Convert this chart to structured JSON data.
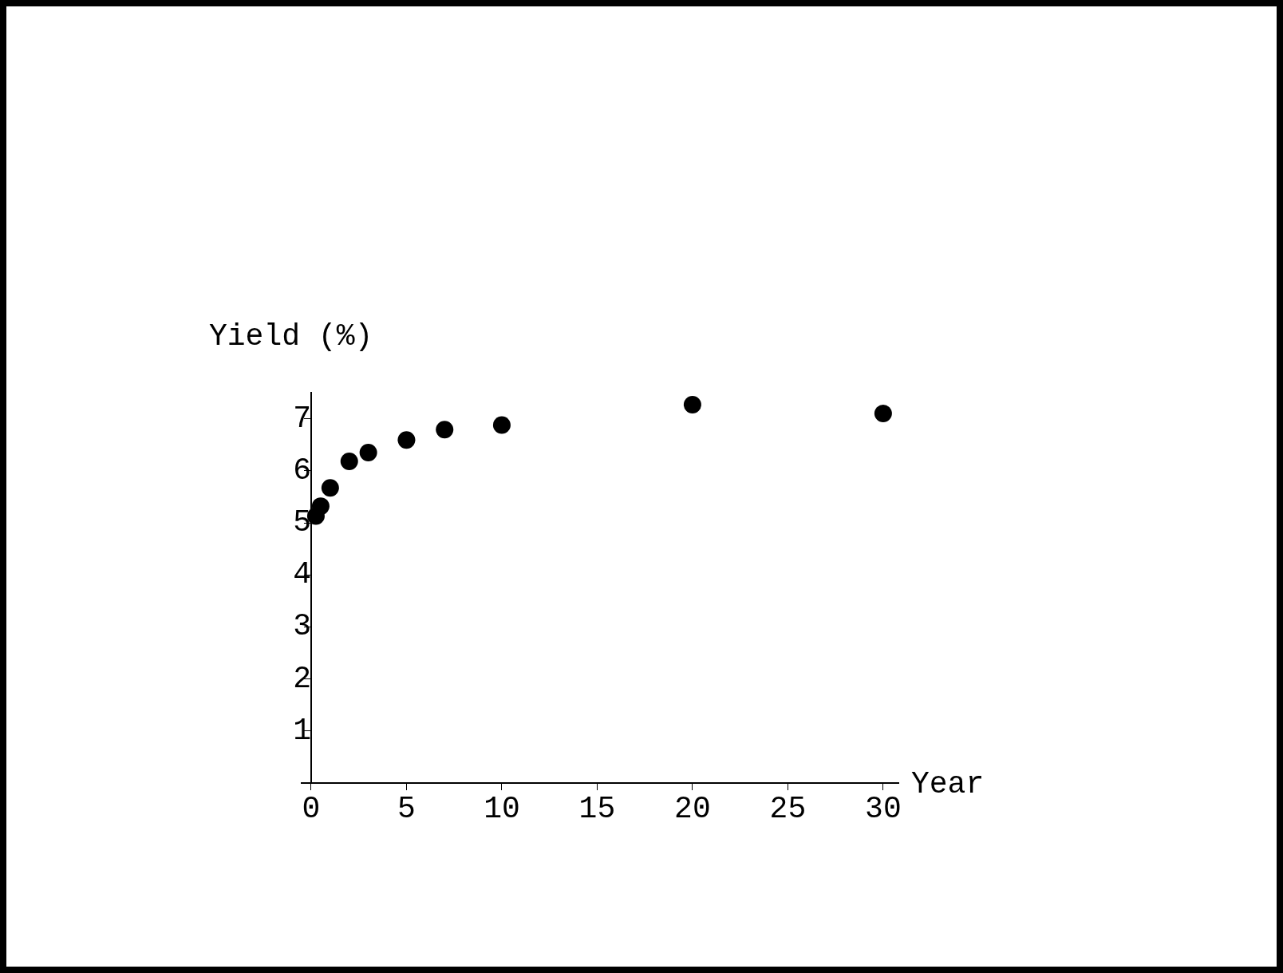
{
  "chart_data": {
    "type": "scatter",
    "xlabel": "Year",
    "ylabel": "Yield (%)",
    "x": [
      0.25,
      0.5,
      1,
      2,
      3,
      5,
      7,
      10,
      20,
      30
    ],
    "values": [
      5.13,
      5.32,
      5.67,
      6.18,
      6.35,
      6.59,
      6.79,
      6.88,
      7.27,
      7.1
    ],
    "color": "#000000",
    "marker": "circle",
    "xlim": [
      -0.5,
      30.8
    ],
    "xticks": [
      0,
      5,
      10,
      15,
      20,
      25,
      30
    ],
    "ylim": [
      0,
      7.5
    ],
    "yticks": [
      1,
      2,
      3,
      4,
      5,
      6,
      7
    ],
    "grid": false,
    "legend": false
  }
}
